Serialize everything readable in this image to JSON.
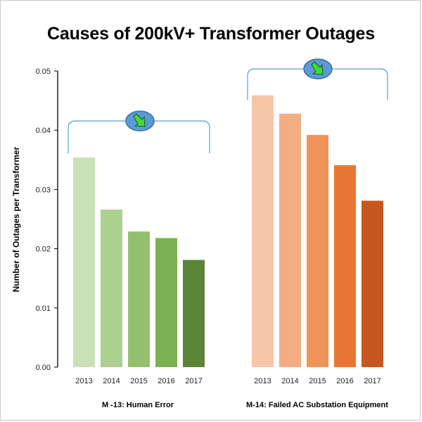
{
  "chart_data": {
    "type": "bar",
    "title": "Causes of 200kV+ Transformer Outages",
    "xlabel": "",
    "ylabel": "Number of Outages per Transformer",
    "ylim": [
      0,
      0.05
    ],
    "yticks": [
      "0.00",
      "0.01",
      "0.02",
      "0.03",
      "0.04",
      "0.05"
    ],
    "yticks_values": [
      0,
      0.01,
      0.02,
      0.03,
      0.04,
      0.05
    ],
    "grid": false,
    "groups": [
      {
        "name": "M -13: Human Error",
        "categories": [
          "2013",
          "2014",
          "2015",
          "2016",
          "2017"
        ],
        "values": [
          0.0354,
          0.0266,
          0.0229,
          0.0218,
          0.0181
        ],
        "colors": [
          "#c9e1b5",
          "#adcf8f",
          "#93c06f",
          "#7ab251",
          "#5b8637"
        ],
        "trend_icon": "down-right-arrow-icon"
      },
      {
        "name": "M-14: Failed AC Substation Equipment",
        "categories": [
          "2013",
          "2014",
          "2015",
          "2016",
          "2017"
        ],
        "values": [
          0.0459,
          0.0428,
          0.0392,
          0.0341,
          0.0281
        ],
        "colors": [
          "#f7c6a9",
          "#f4ad82",
          "#ef9459",
          "#e97632",
          "#c4581f"
        ],
        "trend_icon": "down-right-arrow-icon"
      }
    ]
  },
  "colors": {
    "axis": "#000000",
    "bracket": "#5b9bd5",
    "badge_fill": "#5b9bd5",
    "badge_stroke": "#3a6ea5",
    "arrow": "#3ddc3d"
  }
}
